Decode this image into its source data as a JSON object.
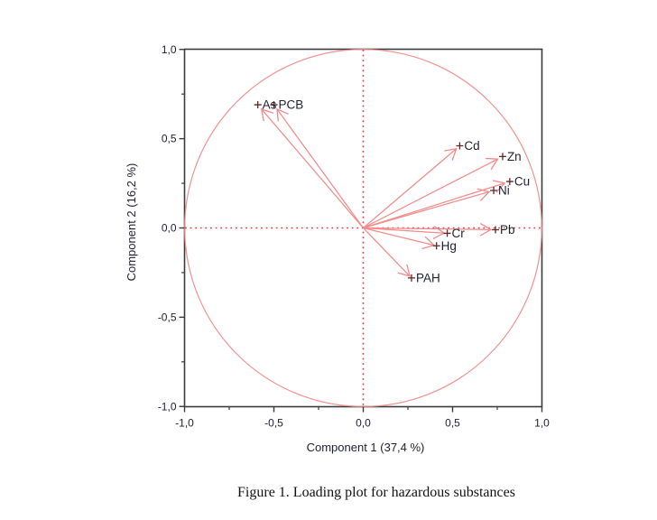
{
  "figure": {
    "caption": "Figure 1. Loading plot for hazardous substances"
  },
  "chart_data": {
    "type": "scatter",
    "subtype": "pca-loading-plot",
    "title": "",
    "xlabel": "Component 1 (37,4 %)",
    "ylabel": "Component 2 (16,2 %)",
    "xlim": [
      -1,
      1
    ],
    "ylim": [
      -1,
      1
    ],
    "grid": false,
    "unit_circle": true,
    "zero_guides": true,
    "x_ticks": {
      "values": [
        -1,
        -0.5,
        0,
        0.5,
        1
      ],
      "labels": [
        "-1,0",
        "-0,5",
        "0,0",
        "0,5",
        "1,0"
      ]
    },
    "y_ticks": {
      "values": [
        1,
        0.5,
        0,
        -0.5,
        -1
      ],
      "labels": [
        "1,0",
        "0,5",
        "0,0",
        "-0,5",
        "-1,0"
      ]
    },
    "minor_ticks": [
      -0.75,
      -0.25,
      0.25,
      0.75
    ],
    "points": [
      {
        "label": "As",
        "x": -0.59,
        "y": 0.69
      },
      {
        "label": "PCB",
        "x": -0.5,
        "y": 0.69
      },
      {
        "label": "Cd",
        "x": 0.54,
        "y": 0.46
      },
      {
        "label": "Zn",
        "x": 0.78,
        "y": 0.4
      },
      {
        "label": "Cu",
        "x": 0.82,
        "y": 0.26
      },
      {
        "label": "Ni",
        "x": 0.73,
        "y": 0.21
      },
      {
        "label": "Pb",
        "x": 0.74,
        "y": -0.01
      },
      {
        "label": "Cr",
        "x": 0.47,
        "y": -0.03
      },
      {
        "label": "Hg",
        "x": 0.41,
        "y": -0.1
      },
      {
        "label": "PAH",
        "x": 0.27,
        "y": -0.28
      }
    ],
    "colors": {
      "vector": "#f28b8b",
      "circle": "#f29191",
      "guide": "#e83b3b",
      "frame": "#3b3b3b",
      "text": "#1f1f33",
      "marker": "#5f2525"
    }
  }
}
